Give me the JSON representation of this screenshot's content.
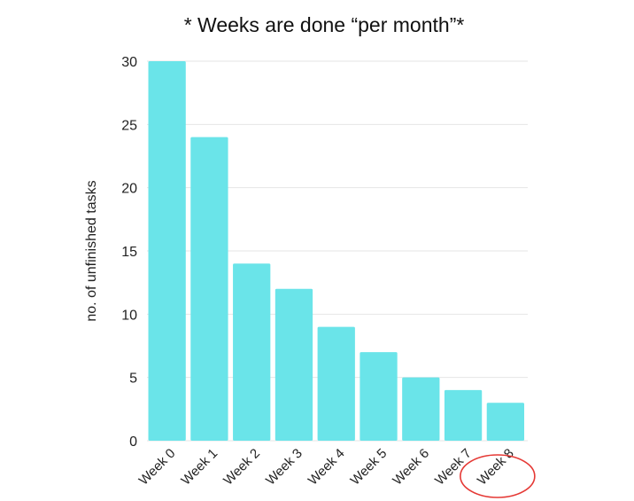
{
  "chart_data": {
    "type": "bar",
    "title": "* Weeks are done “per month”*",
    "xlabel": "",
    "ylabel": "no. of unfinished tasks",
    "categories": [
      "Week 0",
      "Week 1",
      "Week 2",
      "Week 3",
      "Week 4",
      "Week 5",
      "Week 6",
      "Week 7",
      "Week 8"
    ],
    "values": [
      30,
      24,
      14,
      12,
      9,
      7,
      5,
      4,
      3
    ],
    "ylim": [
      0,
      30
    ],
    "yticks": [
      0,
      5,
      10,
      15,
      20,
      25,
      30
    ],
    "grid": true,
    "bar_color": "#6ae4e9",
    "highlight": {
      "category": "Week 8",
      "shape": "ellipse-outline",
      "color": "#e53935"
    }
  }
}
